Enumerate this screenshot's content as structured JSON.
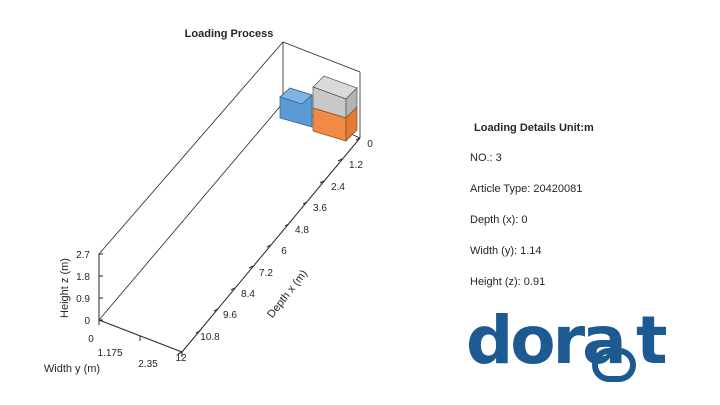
{
  "plot": {
    "title": "Loading Process",
    "x_axis": {
      "label": "Depth x (m)",
      "ticks": [
        "0",
        "1.2",
        "2.4",
        "3.6",
        "4.8",
        "6",
        "7.2",
        "8.4",
        "9.6",
        "10.8",
        "12"
      ]
    },
    "y_axis": {
      "label": "Width y (m)",
      "ticks": [
        "0",
        "1.175",
        "2.35"
      ]
    },
    "z_axis": {
      "label": "Height z (m)",
      "ticks": [
        "0",
        "0.9",
        "1.8",
        "2.7"
      ]
    },
    "box_colors": {
      "blue": "#5b9bd5",
      "orange": "#f08a44",
      "gray": "#c8c8c8"
    }
  },
  "details": {
    "title": "Loading Details Unit:m",
    "no": "NO.: 3",
    "article_type": "Article Type: 20420081",
    "depth": "Depth (x): 0",
    "width": "Width (y): 1.14",
    "height": "Height (z): 0.91"
  },
  "logo": {
    "text": "dora",
    "text_tail": "t",
    "color": "#1c5a91"
  }
}
